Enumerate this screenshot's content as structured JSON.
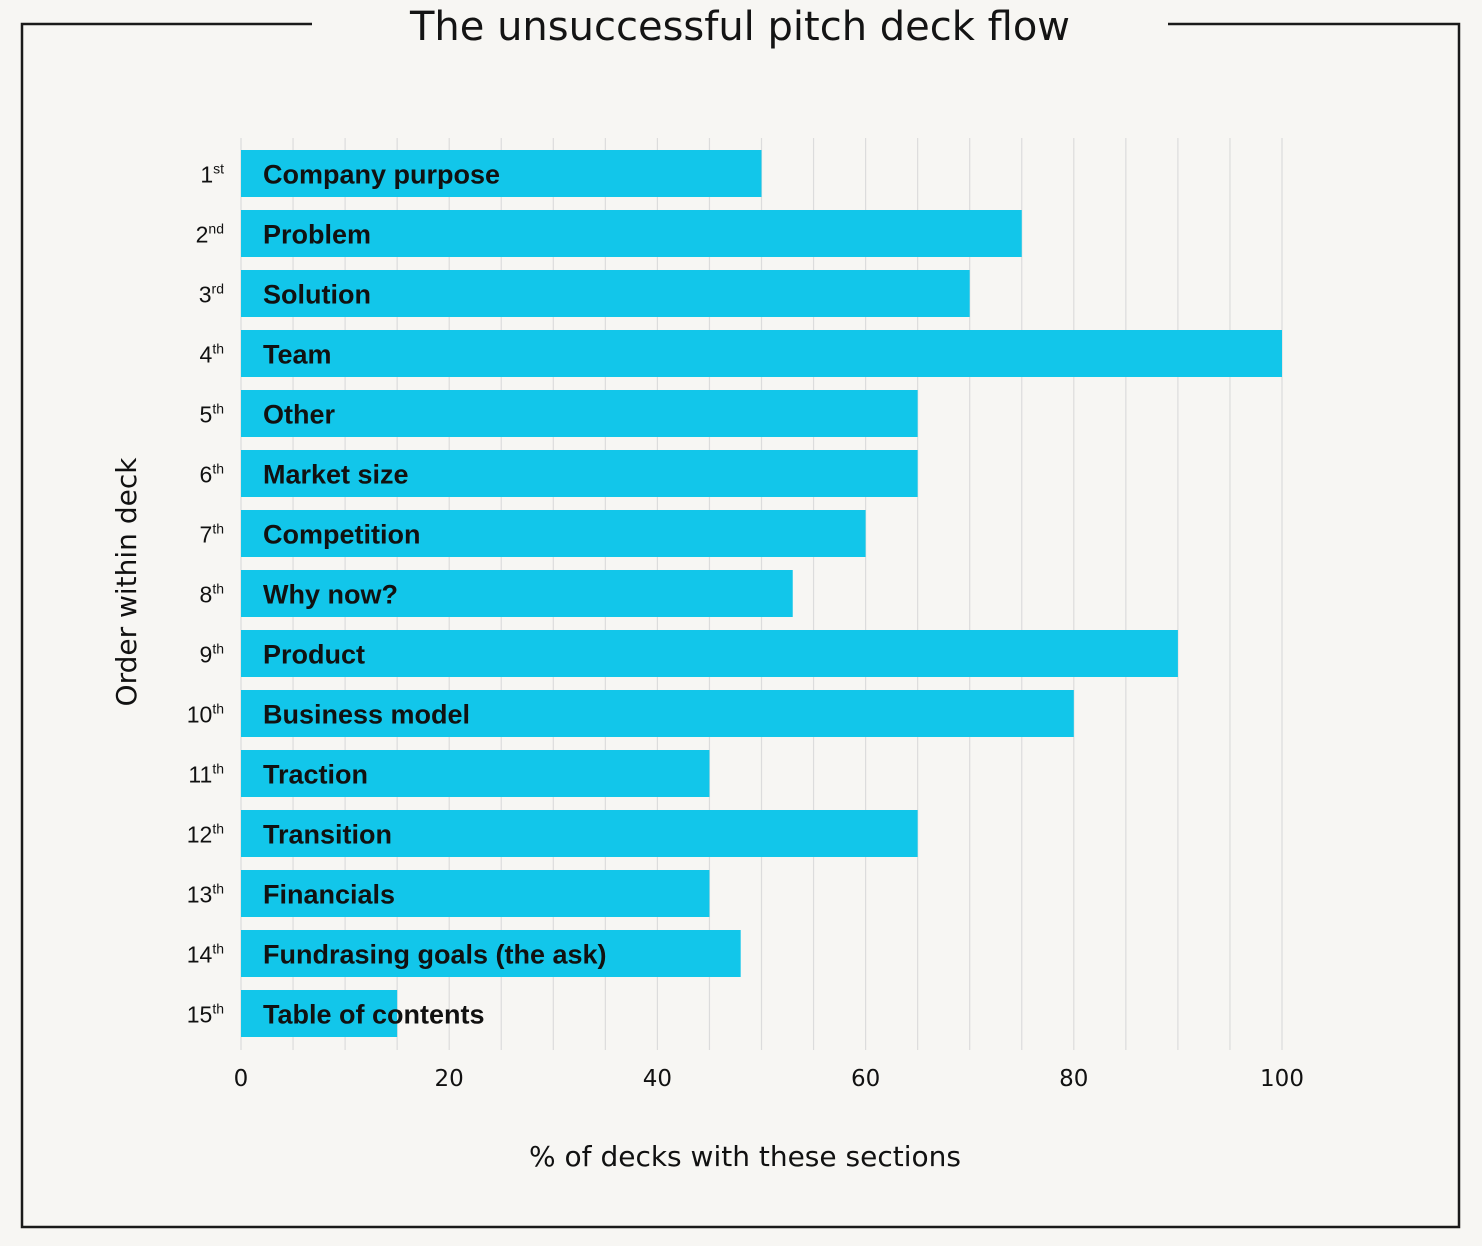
{
  "chart_data": {
    "type": "bar",
    "orientation": "horizontal",
    "title": "The unsuccessful pitch deck flow",
    "xlabel": "% of decks with these sections",
    "ylabel": "Order within deck",
    "xlim": [
      0,
      100
    ],
    "xticks": [
      0,
      20,
      40,
      60,
      80,
      100
    ],
    "grid": true,
    "bar_color": "#12c6ea",
    "ranks": [
      {
        "num": "1",
        "suffix": "st"
      },
      {
        "num": "2",
        "suffix": "nd"
      },
      {
        "num": "3",
        "suffix": "rd"
      },
      {
        "num": "4",
        "suffix": "th"
      },
      {
        "num": "5",
        "suffix": "th"
      },
      {
        "num": "6",
        "suffix": "th"
      },
      {
        "num": "7",
        "suffix": "th"
      },
      {
        "num": "8",
        "suffix": "th"
      },
      {
        "num": "9",
        "suffix": "th"
      },
      {
        "num": "10",
        "suffix": "th"
      },
      {
        "num": "11",
        "suffix": "th"
      },
      {
        "num": "12",
        "suffix": "th"
      },
      {
        "num": "13",
        "suffix": "th"
      },
      {
        "num": "14",
        "suffix": "th"
      },
      {
        "num": "15",
        "suffix": "th"
      }
    ],
    "categories": [
      "Company purpose",
      "Problem",
      "Solution",
      "Team",
      "Other",
      "Market size",
      "Competition",
      "Why now?",
      "Product",
      "Business model",
      "Traction",
      "Transition",
      "Financials",
      "Fundrasing goals (the ask)",
      "Table of contents"
    ],
    "values": [
      50,
      75,
      70,
      100,
      65,
      65,
      60,
      53,
      90,
      80,
      45,
      65,
      45,
      48,
      15
    ]
  }
}
